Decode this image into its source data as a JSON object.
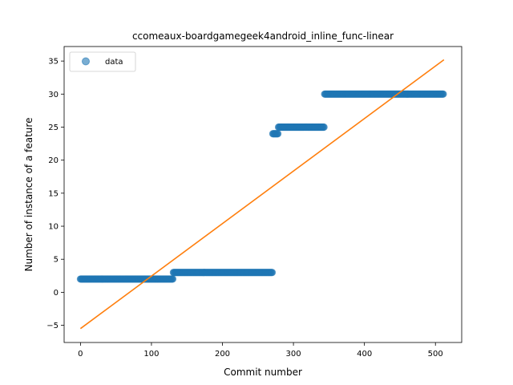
{
  "chart_data": {
    "type": "scatter",
    "title": "ccomeaux-boardgamegeek4android_inline_func-linear",
    "xlabel": "Commit number",
    "ylabel": "Number of instance of a feature",
    "xlim": [
      -23,
      537
    ],
    "ylim": [
      -7.6,
      37.2
    ],
    "xticks": [
      0,
      100,
      200,
      300,
      400,
      500
    ],
    "yticks": [
      -5,
      0,
      5,
      10,
      15,
      20,
      25,
      30,
      35
    ],
    "grid": false,
    "legend": {
      "position": "top-left",
      "entries": [
        "data"
      ]
    },
    "colors": {
      "data": "#1f77b4",
      "fit": "#ff7f0e"
    },
    "series": [
      {
        "name": "data",
        "kind": "scatter",
        "segments": [
          {
            "x_start": 0,
            "x_end": 131,
            "y": 2
          },
          {
            "x_start": 131,
            "x_end": 271,
            "y": 3
          },
          {
            "x_start": 271,
            "x_end": 279,
            "y": 24
          },
          {
            "x_start": 279,
            "x_end": 344,
            "y": 25
          },
          {
            "x_start": 344,
            "x_end": 512,
            "y": 30
          }
        ]
      },
      {
        "kind": "line",
        "x": [
          0,
          512
        ],
        "y": [
          -5.5,
          35.2
        ]
      }
    ]
  }
}
